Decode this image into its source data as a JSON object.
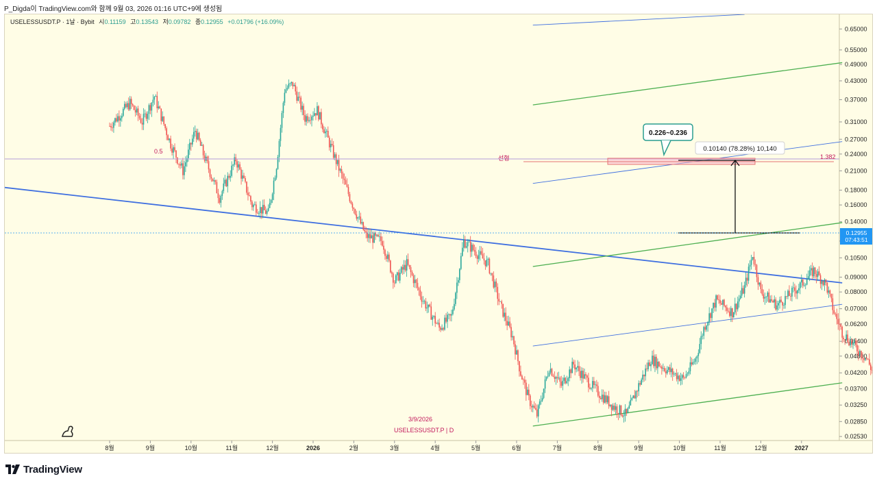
{
  "header": {
    "publisher_text": "P_Digda이 TradingView.com와 함께 9월 03, 2026 01:16 UTC+9에 생성됨"
  },
  "legend": {
    "symbol_text": "USELESSUSDT.P · 1날 · Bybit",
    "open_label": "시",
    "open": "0.11159",
    "high_label": "고",
    "high": "0.13543",
    "low_label": "저",
    "low": "0.09782",
    "close_label": "종",
    "close": "0.12955",
    "change": "+0.01796 (+16.09%)"
  },
  "price_tag": {
    "price": "0.12955",
    "countdown": "07:43:51"
  },
  "annotations": {
    "callout": "0.226~0.236",
    "measure": "0.10140 (78.28%) 10,140",
    "fib_left": "0.5",
    "fib_right": "1.382",
    "line_label": "선형",
    "start_date": "3/9/2026",
    "watermark": "USELESSUSDT.P | D"
  },
  "colors": {
    "background": "#fffde6",
    "up": "#26a69a",
    "down": "#ef5350",
    "blue": "#3f6fe0",
    "green": "#4caf50",
    "pink": "#c2185b",
    "price_tag": "#2196f3"
  },
  "chart_data": {
    "type": "candlestick",
    "scale": "log",
    "ylim": [
      0.0245,
      0.73
    ],
    "y_ticks": [
      "0.65000",
      "0.55000",
      "0.49000",
      "0.43000",
      "0.37000",
      "0.31000",
      "0.27000",
      "0.24000",
      "0.21000",
      "0.18000",
      "0.16000",
      "0.14000",
      "0.12000",
      "0.10500",
      "0.09000",
      "0.08000",
      "0.07000",
      "0.06200",
      "0.05400",
      "0.04800",
      "0.04200",
      "0.03700",
      "0.03250",
      "0.02850",
      "0.02530"
    ],
    "x_ticks": [
      "8월",
      "9월",
      "10월",
      "11월",
      "12월",
      "2026",
      "2월",
      "3월",
      "4월",
      "5월",
      "6월",
      "7월",
      "8월",
      "9월",
      "10월",
      "11월",
      "12월",
      "2027"
    ],
    "price_path": [
      [
        0.0,
        0.3
      ],
      [
        0.5,
        0.36
      ],
      [
        0.8,
        0.31
      ],
      [
        1.1,
        0.38
      ],
      [
        1.5,
        0.26
      ],
      [
        1.8,
        0.21
      ],
      [
        2.1,
        0.29
      ],
      [
        2.3,
        0.24
      ],
      [
        2.7,
        0.17
      ],
      [
        3.1,
        0.23
      ],
      [
        3.5,
        0.16
      ],
      [
        3.9,
        0.15
      ],
      [
        4.1,
        0.22
      ],
      [
        4.3,
        0.4
      ],
      [
        4.5,
        0.42
      ],
      [
        4.8,
        0.32
      ],
      [
        5.1,
        0.34
      ],
      [
        5.5,
        0.24
      ],
      [
        5.9,
        0.17
      ],
      [
        6.1,
        0.145
      ],
      [
        6.3,
        0.125
      ],
      [
        6.7,
        0.12
      ],
      [
        7.0,
        0.087
      ],
      [
        7.3,
        0.1
      ],
      [
        7.7,
        0.075
      ],
      [
        8.1,
        0.06
      ],
      [
        8.4,
        0.066
      ],
      [
        8.7,
        0.12
      ],
      [
        9.0,
        0.11
      ],
      [
        9.3,
        0.1
      ],
      [
        9.6,
        0.072
      ],
      [
        9.9,
        0.056
      ],
      [
        10.1,
        0.042
      ],
      [
        10.3,
        0.034
      ],
      [
        10.5,
        0.03
      ],
      [
        10.8,
        0.044
      ],
      [
        11.1,
        0.038
      ],
      [
        11.4,
        0.045
      ],
      [
        11.7,
        0.04
      ],
      [
        12.0,
        0.036
      ],
      [
        12.4,
        0.032
      ],
      [
        12.7,
        0.03
      ],
      [
        13.0,
        0.038
      ],
      [
        13.3,
        0.047
      ],
      [
        13.7,
        0.043
      ],
      [
        14.1,
        0.04
      ],
      [
        14.4,
        0.047
      ],
      [
        14.6,
        0.06
      ],
      [
        14.9,
        0.075
      ],
      [
        15.3,
        0.068
      ],
      [
        15.6,
        0.083
      ],
      [
        15.8,
        0.108
      ],
      [
        16.0,
        0.08
      ],
      [
        16.4,
        0.072
      ],
      [
        16.7,
        0.078
      ],
      [
        17.0,
        0.085
      ],
      [
        17.3,
        0.095
      ],
      [
        17.6,
        0.085
      ],
      [
        17.8,
        0.068
      ],
      [
        18.0,
        0.058
      ],
      [
        18.3,
        0.052
      ],
      [
        18.6,
        0.047
      ],
      [
        18.9,
        0.038
      ],
      [
        19.1,
        0.035
      ],
      [
        19.3,
        0.04
      ],
      [
        19.6,
        0.06
      ],
      [
        19.9,
        0.068
      ],
      [
        20.1,
        0.095
      ],
      [
        20.25,
        0.12955
      ]
    ],
    "levels": {
      "fib_0_5": 0.233,
      "fib_1_382": 0.233,
      "target_low": 0.226,
      "target_high": 0.236,
      "base": 0.1253
    }
  }
}
